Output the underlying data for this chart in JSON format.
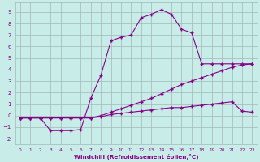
{
  "xlabel": "Windchill (Refroidissement éolien,°C)",
  "ylabel": "",
  "xlim": [
    -0.5,
    23.5
  ],
  "ylim": [
    -2.5,
    9.8
  ],
  "xticks": [
    0,
    1,
    2,
    3,
    4,
    5,
    6,
    7,
    8,
    9,
    10,
    11,
    12,
    13,
    14,
    15,
    16,
    17,
    18,
    19,
    20,
    21,
    22,
    23
  ],
  "yticks": [
    -2,
    -1,
    0,
    1,
    2,
    3,
    4,
    5,
    6,
    7,
    8,
    9
  ],
  "bg_color": "#c8ece8",
  "grid_color": "#a0b8b8",
  "line_color": "#880088",
  "line1_x": [
    0,
    1,
    2,
    3,
    4,
    5,
    6,
    7,
    8,
    9,
    10,
    11,
    12,
    13,
    14,
    15,
    16,
    17,
    18,
    19,
    20,
    21,
    22,
    23
  ],
  "line1_y": [
    -0.2,
    -0.2,
    -0.2,
    -1.3,
    -1.3,
    -1.3,
    -1.2,
    1.5,
    3.5,
    6.5,
    6.8,
    7.0,
    8.5,
    8.8,
    9.2,
    8.8,
    7.5,
    7.2,
    4.5,
    4.5,
    4.5,
    4.5,
    4.5,
    4.5
  ],
  "line2_x": [
    0,
    1,
    2,
    3,
    4,
    5,
    6,
    7,
    8,
    9,
    10,
    11,
    12,
    13,
    14,
    15,
    16,
    17,
    18,
    19,
    20,
    21,
    22,
    23
  ],
  "line2_y": [
    -0.2,
    -0.2,
    -0.2,
    -0.2,
    -0.2,
    -0.2,
    -0.2,
    -0.2,
    0.0,
    0.3,
    0.6,
    0.9,
    1.2,
    1.5,
    1.9,
    2.3,
    2.7,
    3.0,
    3.3,
    3.6,
    3.9,
    4.2,
    4.4,
    4.5
  ],
  "line3_x": [
    0,
    1,
    2,
    3,
    4,
    5,
    6,
    7,
    8,
    9,
    10,
    11,
    12,
    13,
    14,
    15,
    16,
    17,
    18,
    19,
    20,
    21,
    22,
    23
  ],
  "line3_y": [
    -0.2,
    -0.2,
    -0.2,
    -0.2,
    -0.2,
    -0.2,
    -0.2,
    -0.2,
    -0.1,
    0.1,
    0.2,
    0.3,
    0.4,
    0.5,
    0.6,
    0.7,
    0.7,
    0.8,
    0.9,
    1.0,
    1.1,
    1.2,
    0.4,
    0.3
  ]
}
